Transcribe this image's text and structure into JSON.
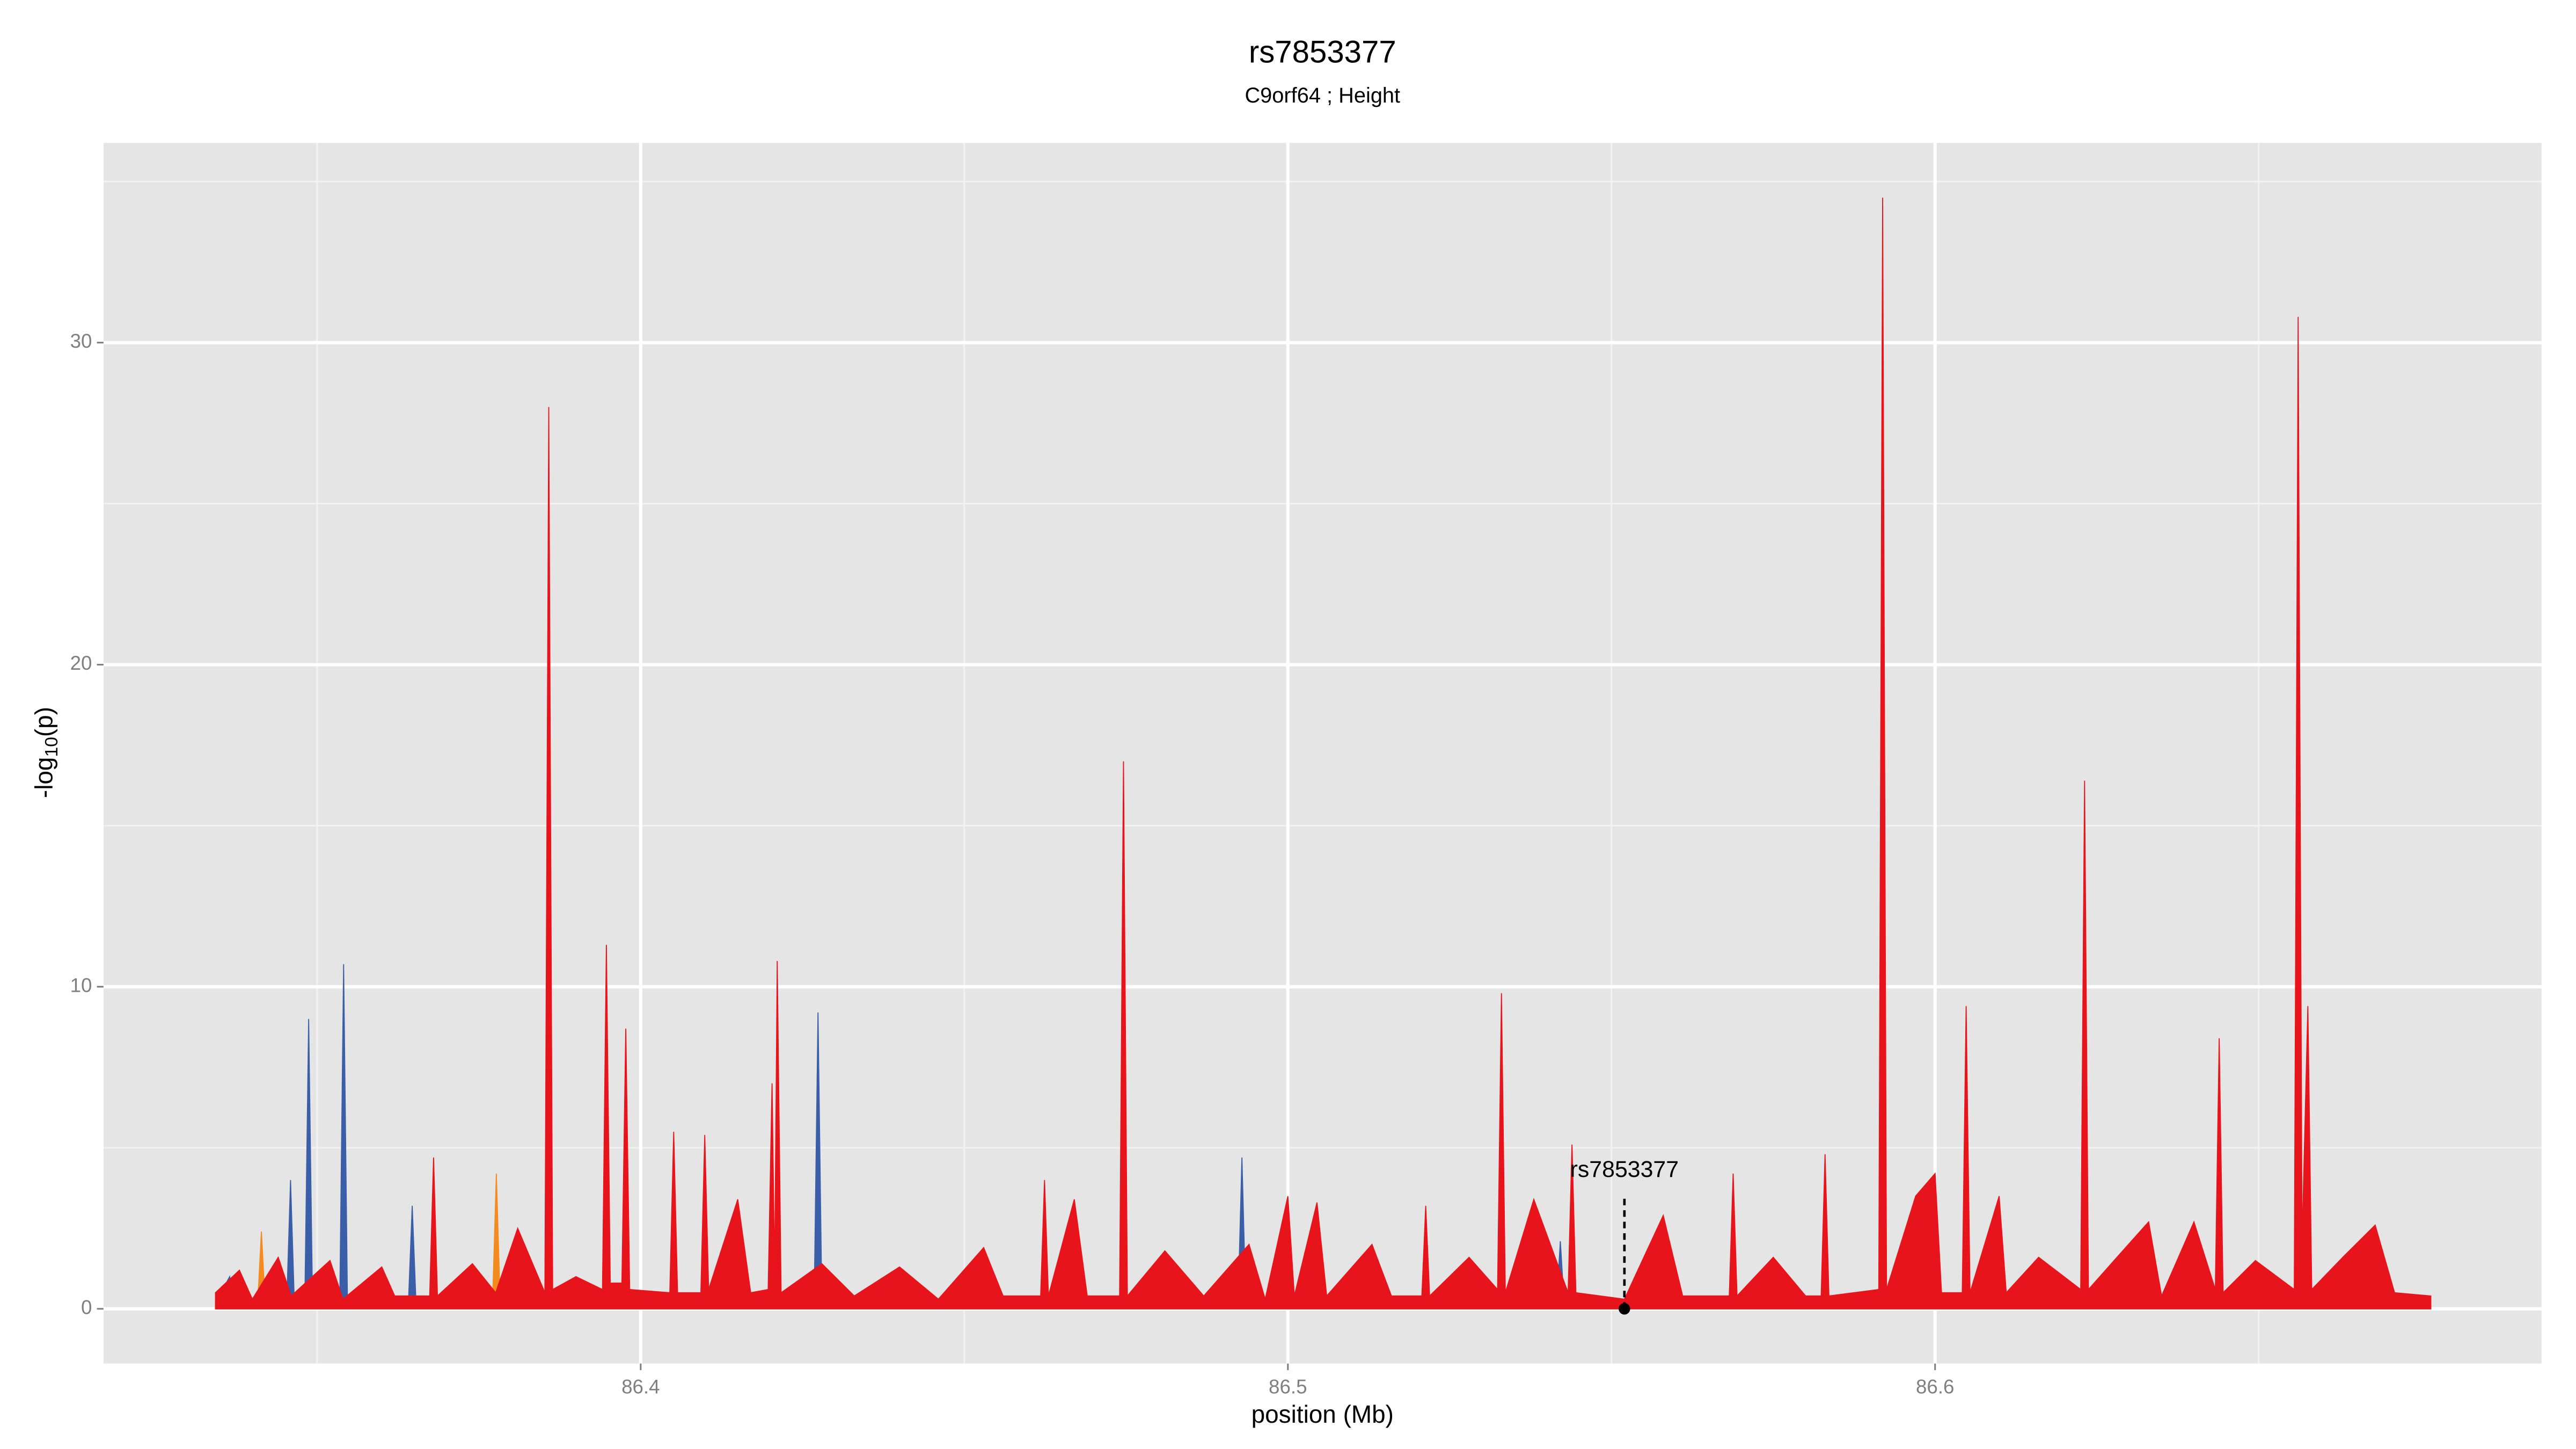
{
  "chart_data": {
    "type": "area",
    "title": "rs7853377",
    "subtitle": "C9orf64 ; Height",
    "x_label": "position (Mb)",
    "y_label": [
      "-log",
      "10",
      "(p)"
    ],
    "xlim": [
      86.317,
      86.6937
    ],
    "xticks": [
      86.4,
      86.5,
      86.6
    ],
    "ylim": [
      -1.7,
      36.2
    ],
    "yticks": [
      0,
      10,
      20,
      30
    ],
    "grid": true,
    "series": [
      {
        "color": "#3a5fa8",
        "x": [
          86.3343,
          86.3365,
          86.3372,
          86.3453,
          86.3459,
          86.3465,
          86.3481,
          86.3487,
          86.3493,
          86.3535,
          86.3541,
          86.3547,
          86.3641,
          86.3647,
          86.3653,
          86.4268,
          86.4274,
          86.428,
          86.4923,
          86.4929,
          86.4935,
          86.5415,
          86.5421,
          86.5427,
          86.6766
        ],
        "values": [
          0.2,
          1.0,
          0.1,
          0.1,
          4.0,
          0.1,
          0.1,
          9.0,
          0.1,
          0.1,
          10.7,
          0.1,
          0.1,
          3.2,
          0.1,
          0.1,
          9.2,
          0.1,
          0.1,
          4.7,
          0.1,
          0.1,
          2.1,
          0.1,
          0.1
        ]
      },
      {
        "color": "#f58a1f",
        "x": [
          86.3343,
          86.3408,
          86.3414,
          86.342,
          86.3771,
          86.3777,
          86.3783,
          86.6766
        ],
        "values": [
          0.1,
          0.1,
          2.4,
          0.1,
          0.1,
          4.2,
          0.1,
          0.1
        ]
      },
      {
        "color": "#e8141c",
        "x": [
          86.3343,
          86.338,
          86.34,
          86.344,
          86.346,
          86.352,
          86.354,
          86.36,
          86.362,
          86.3674,
          86.368,
          86.3686,
          86.374,
          86.3776,
          86.381,
          86.3852,
          86.3858,
          86.3864,
          86.39,
          86.3941,
          86.3947,
          86.3953,
          86.3971,
          86.3977,
          86.3983,
          86.4045,
          86.4051,
          86.4057,
          86.4093,
          86.4099,
          86.4105,
          86.415,
          86.417,
          86.4197,
          86.4203,
          86.4207,
          86.4211,
          86.4217,
          86.428,
          86.433,
          86.44,
          86.446,
          86.453,
          86.456,
          86.4618,
          86.4624,
          86.463,
          86.467,
          86.469,
          86.474,
          86.4746,
          86.4752,
          86.481,
          86.487,
          86.494,
          86.4965,
          86.5,
          86.501,
          86.5045,
          86.506,
          86.513,
          86.516,
          86.5207,
          86.5213,
          86.5219,
          86.528,
          86.5324,
          86.533,
          86.5336,
          86.538,
          86.5433,
          86.5439,
          86.5445,
          86.552,
          86.558,
          86.561,
          86.5682,
          86.5688,
          86.5694,
          86.575,
          86.58,
          86.5824,
          86.583,
          86.5836,
          86.5913,
          86.5919,
          86.5925,
          86.597,
          86.6,
          86.601,
          86.6042,
          86.6048,
          86.6054,
          86.6099,
          86.611,
          86.616,
          86.6225,
          86.6231,
          86.6237,
          86.629,
          86.633,
          86.635,
          86.64,
          86.6433,
          86.6439,
          86.6445,
          86.6495,
          86.6555,
          86.6561,
          86.6567,
          86.6576,
          86.6582,
          86.663,
          86.668,
          86.671,
          86.6766
        ],
        "values": [
          0.5,
          1.2,
          0.3,
          1.6,
          0.4,
          1.5,
          0.3,
          1.3,
          0.4,
          0.4,
          4.7,
          0.4,
          1.4,
          0.5,
          2.5,
          0.5,
          28.0,
          0.6,
          1.0,
          0.6,
          11.3,
          0.8,
          0.8,
          8.7,
          0.6,
          0.5,
          5.5,
          0.5,
          0.5,
          5.4,
          0.6,
          3.4,
          0.5,
          0.6,
          7.0,
          1.0,
          10.8,
          0.5,
          1.4,
          0.4,
          1.3,
          0.3,
          1.9,
          0.4,
          0.4,
          4.0,
          0.4,
          3.4,
          0.4,
          0.4,
          17.0,
          0.4,
          1.8,
          0.4,
          2.0,
          0.3,
          3.5,
          0.4,
          3.3,
          0.4,
          2.0,
          0.4,
          0.4,
          3.2,
          0.4,
          1.6,
          0.6,
          9.8,
          0.5,
          3.4,
          0.5,
          5.1,
          0.5,
          0.3,
          2.9,
          0.4,
          0.4,
          4.2,
          0.4,
          1.6,
          0.4,
          0.4,
          4.8,
          0.4,
          0.6,
          34.5,
          0.6,
          3.5,
          4.2,
          0.5,
          0.5,
          9.4,
          0.5,
          3.5,
          0.5,
          1.6,
          0.6,
          16.4,
          0.6,
          1.8,
          2.7,
          0.4,
          2.7,
          0.6,
          8.4,
          0.5,
          1.5,
          0.6,
          30.8,
          2.0,
          9.4,
          0.6,
          1.6,
          2.6,
          0.5,
          0.4
        ]
      }
    ],
    "annotations": [
      {
        "label": "rs7853377",
        "x": 86.552,
        "y": 0
      }
    ]
  }
}
